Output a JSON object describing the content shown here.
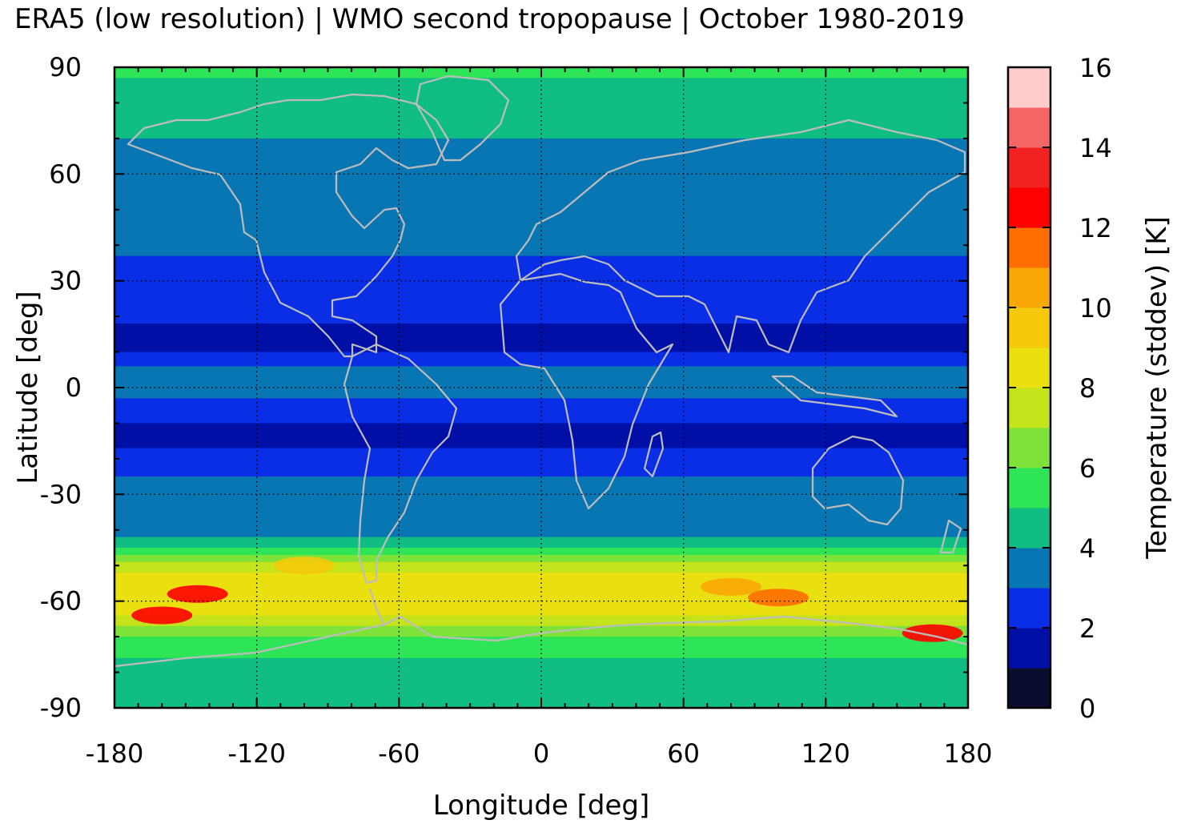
{
  "title": "ERA5 (low resolution) | WMO second tropopause | October 1980-2019",
  "chart_data": {
    "type": "heatmap",
    "xlabel": "Longitude [deg]",
    "ylabel": "Latitude [deg]",
    "xlim": [
      -180,
      180
    ],
    "ylim": [
      -90,
      90
    ],
    "xticks": [
      -180,
      -120,
      -60,
      0,
      60,
      120,
      180
    ],
    "yticks": [
      90,
      60,
      30,
      0,
      -30,
      -60,
      -90
    ],
    "x_tick_labels": [
      "-180",
      "-120",
      "-60",
      "0",
      "60",
      "120",
      "180"
    ],
    "y_tick_labels": [
      "90",
      "60",
      "30",
      "0",
      "-30",
      "-60",
      "-90"
    ],
    "grid": true,
    "coastlines": true,
    "coastline_color": "#bdbdbd",
    "colorbar": {
      "label": "Temperature (stddev) [K]",
      "range": [
        0,
        16
      ],
      "tick_values": [
        0,
        2,
        4,
        6,
        8,
        10,
        12,
        14,
        16
      ],
      "tick_labels": [
        "0",
        "2",
        "4",
        "6",
        "8",
        "10",
        "12",
        "14",
        "16"
      ],
      "bins": [
        {
          "min": 0,
          "max": 1,
          "color": "#0b0d2e"
        },
        {
          "min": 1,
          "max": 2,
          "color": "#000fa6"
        },
        {
          "min": 2,
          "max": 3,
          "color": "#0a2ee6"
        },
        {
          "min": 3,
          "max": 4,
          "color": "#0976b4"
        },
        {
          "min": 4,
          "max": 5,
          "color": "#10bd82"
        },
        {
          "min": 5,
          "max": 6,
          "color": "#2ee457"
        },
        {
          "min": 6,
          "max": 7,
          "color": "#7ee338"
        },
        {
          "min": 7,
          "max": 8,
          "color": "#c4e31a"
        },
        {
          "min": 8,
          "max": 9,
          "color": "#eae010"
        },
        {
          "min": 9,
          "max": 10,
          "color": "#f5c90a"
        },
        {
          "min": 10,
          "max": 11,
          "color": "#f8a705"
        },
        {
          "min": 11,
          "max": 12,
          "color": "#fe6d00"
        },
        {
          "min": 12,
          "max": 13,
          "color": "#ff0000"
        },
        {
          "min": 13,
          "max": 14,
          "color": "#f22222"
        },
        {
          "min": 14,
          "max": 15,
          "color": "#f46666"
        },
        {
          "min": 15,
          "max": 16,
          "color": "#ffcccc"
        }
      ]
    },
    "zonal_profile": [
      {
        "lat": 90,
        "value": 5.5
      },
      {
        "lat": 85,
        "value": 4.5
      },
      {
        "lat": 80,
        "value": 4.5
      },
      {
        "lat": 70,
        "value": 4.0
      },
      {
        "lat": 60,
        "value": 3.5
      },
      {
        "lat": 50,
        "value": 3.5
      },
      {
        "lat": 40,
        "value": 3.2
      },
      {
        "lat": 35,
        "value": 2.8
      },
      {
        "lat": 25,
        "value": 2.4
      },
      {
        "lat": 15,
        "value": 1.8
      },
      {
        "lat": 10,
        "value": 2.0
      },
      {
        "lat": 5,
        "value": 3.3
      },
      {
        "lat": 0,
        "value": 3.5
      },
      {
        "lat": -5,
        "value": 2.6
      },
      {
        "lat": -13,
        "value": 1.7
      },
      {
        "lat": -20,
        "value": 2.2
      },
      {
        "lat": -25,
        "value": 3.0
      },
      {
        "lat": -35,
        "value": 3.5
      },
      {
        "lat": -42,
        "value": 4.0
      },
      {
        "lat": -45,
        "value": 4.8
      },
      {
        "lat": -50,
        "value": 7.5
      },
      {
        "lat": -55,
        "value": 8.5
      },
      {
        "lat": -58,
        "value": 9.0
      },
      {
        "lat": -62,
        "value": 8.5
      },
      {
        "lat": -67,
        "value": 7.0
      },
      {
        "lat": -72,
        "value": 5.5
      },
      {
        "lat": -80,
        "value": 4.5
      },
      {
        "lat": -90,
        "value": 4.5
      }
    ],
    "hotspots": [
      {
        "lon": -160,
        "lat": -64,
        "value": 12.5
      },
      {
        "lon": -145,
        "lat": -58,
        "value": 12.0
      },
      {
        "lon": 80,
        "lat": -56,
        "value": 10.5
      },
      {
        "lon": 100,
        "lat": -59,
        "value": 11.0
      },
      {
        "lon": 165,
        "lat": -69,
        "value": 12.5
      },
      {
        "lon": -100,
        "lat": -50,
        "value": 9.5
      }
    ]
  }
}
